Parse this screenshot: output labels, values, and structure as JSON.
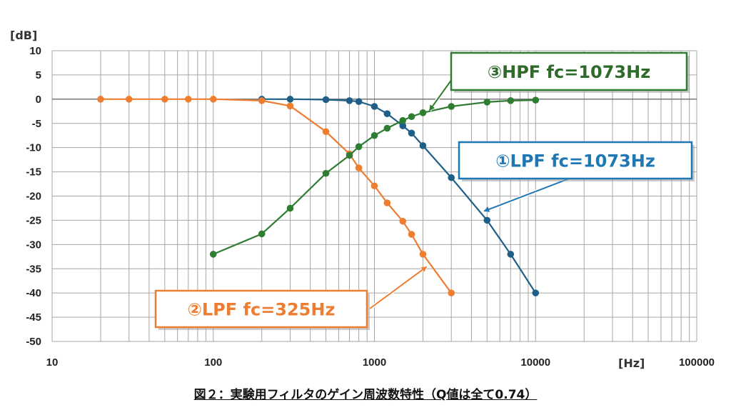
{
  "chart_data": {
    "type": "line",
    "ylabel": "[dB]",
    "xlabel": "[Hz]",
    "x_scale": "log",
    "xlim": [
      10,
      100000
    ],
    "ylim": [
      -50,
      10
    ],
    "grid": true,
    "y_ticks": [
      "10",
      "5",
      "0",
      "-5",
      "-10",
      "-15",
      "-20",
      "-25",
      "-30",
      "-35",
      "-40",
      "-45",
      "-50"
    ],
    "x_ticks": [
      "10",
      "100",
      "1000",
      "10000",
      "100000"
    ],
    "series": [
      {
        "name": "①LPF  fc=1073Hz",
        "color": "#1f5f87",
        "x": [
          200,
          300,
          500,
          700,
          800,
          1000,
          1200,
          1500,
          1700,
          2000,
          3000,
          5000,
          7000,
          10000
        ],
        "y": [
          0,
          0,
          -0.1,
          -0.3,
          -0.5,
          -1.5,
          -3,
          -5.5,
          -7,
          -9.6,
          -16.2,
          -25,
          -32,
          -40
        ]
      },
      {
        "name": "②LPF  fc=325Hz",
        "color": "#ed7d31",
        "x": [
          20,
          30,
          50,
          70,
          100,
          200,
          300,
          500,
          700,
          800,
          1000,
          1200,
          1500,
          1700,
          2000,
          3000
        ],
        "y": [
          0,
          0,
          0,
          0,
          0,
          -0.3,
          -1.4,
          -6.7,
          -11.3,
          -14.2,
          -17.9,
          -21.4,
          -25.2,
          -27.9,
          -32,
          -40
        ]
      },
      {
        "name": "③HPF  fc=1073Hz",
        "color": "#2e7d32",
        "x": [
          100,
          200,
          300,
          500,
          700,
          800,
          1000,
          1200,
          1500,
          1700,
          2000,
          3000,
          5000,
          7000,
          10000
        ],
        "y": [
          -32,
          -27.8,
          -22.5,
          -15.3,
          -11.6,
          -9.8,
          -7.5,
          -6,
          -4.4,
          -3.6,
          -2.8,
          -1.5,
          -0.6,
          -0.3,
          -0.2
        ]
      }
    ]
  },
  "callouts": [
    {
      "label": "①LPF  fc=1073Hz",
      "border": "#1f77b4",
      "text_color": "#1f77b4"
    },
    {
      "label": "②LPF  fc=325Hz",
      "border": "#ed7d31",
      "text_color": "#ed7d31"
    },
    {
      "label": "③HPF  fc=1073Hz",
      "border": "#2e7d32",
      "text_color": "#2e6b2a"
    }
  ],
  "caption": "図２：実験用フィルタのゲイン周波数特性（Q値は全て0.74）"
}
